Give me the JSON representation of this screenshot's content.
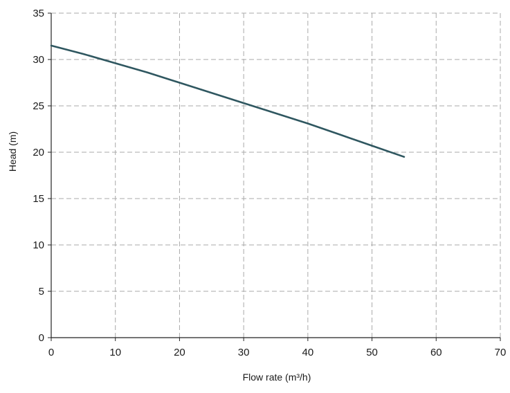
{
  "chart_data": {
    "type": "line",
    "title": "",
    "xlabel": "Flow rate (m³/h)",
    "ylabel": "Head (m)",
    "xlim": [
      0,
      70
    ],
    "ylim": [
      0,
      35
    ],
    "x_ticks": [
      "0",
      "10",
      "20",
      "30",
      "40",
      "50",
      "60",
      "70"
    ],
    "y_ticks": [
      "0",
      "5",
      "10",
      "15",
      "20",
      "25",
      "30",
      "35"
    ],
    "grid": true,
    "grid_style": "dashed",
    "legend": "none",
    "series": [
      {
        "color": "#2f5760",
        "x": [
          0,
          5,
          10,
          15,
          20,
          25,
          30,
          35,
          40,
          45,
          50,
          55
        ],
        "y": [
          31.5,
          30.6,
          29.6,
          28.6,
          27.5,
          26.4,
          25.3,
          24.2,
          23.1,
          21.9,
          20.7,
          19.5
        ]
      }
    ]
  }
}
